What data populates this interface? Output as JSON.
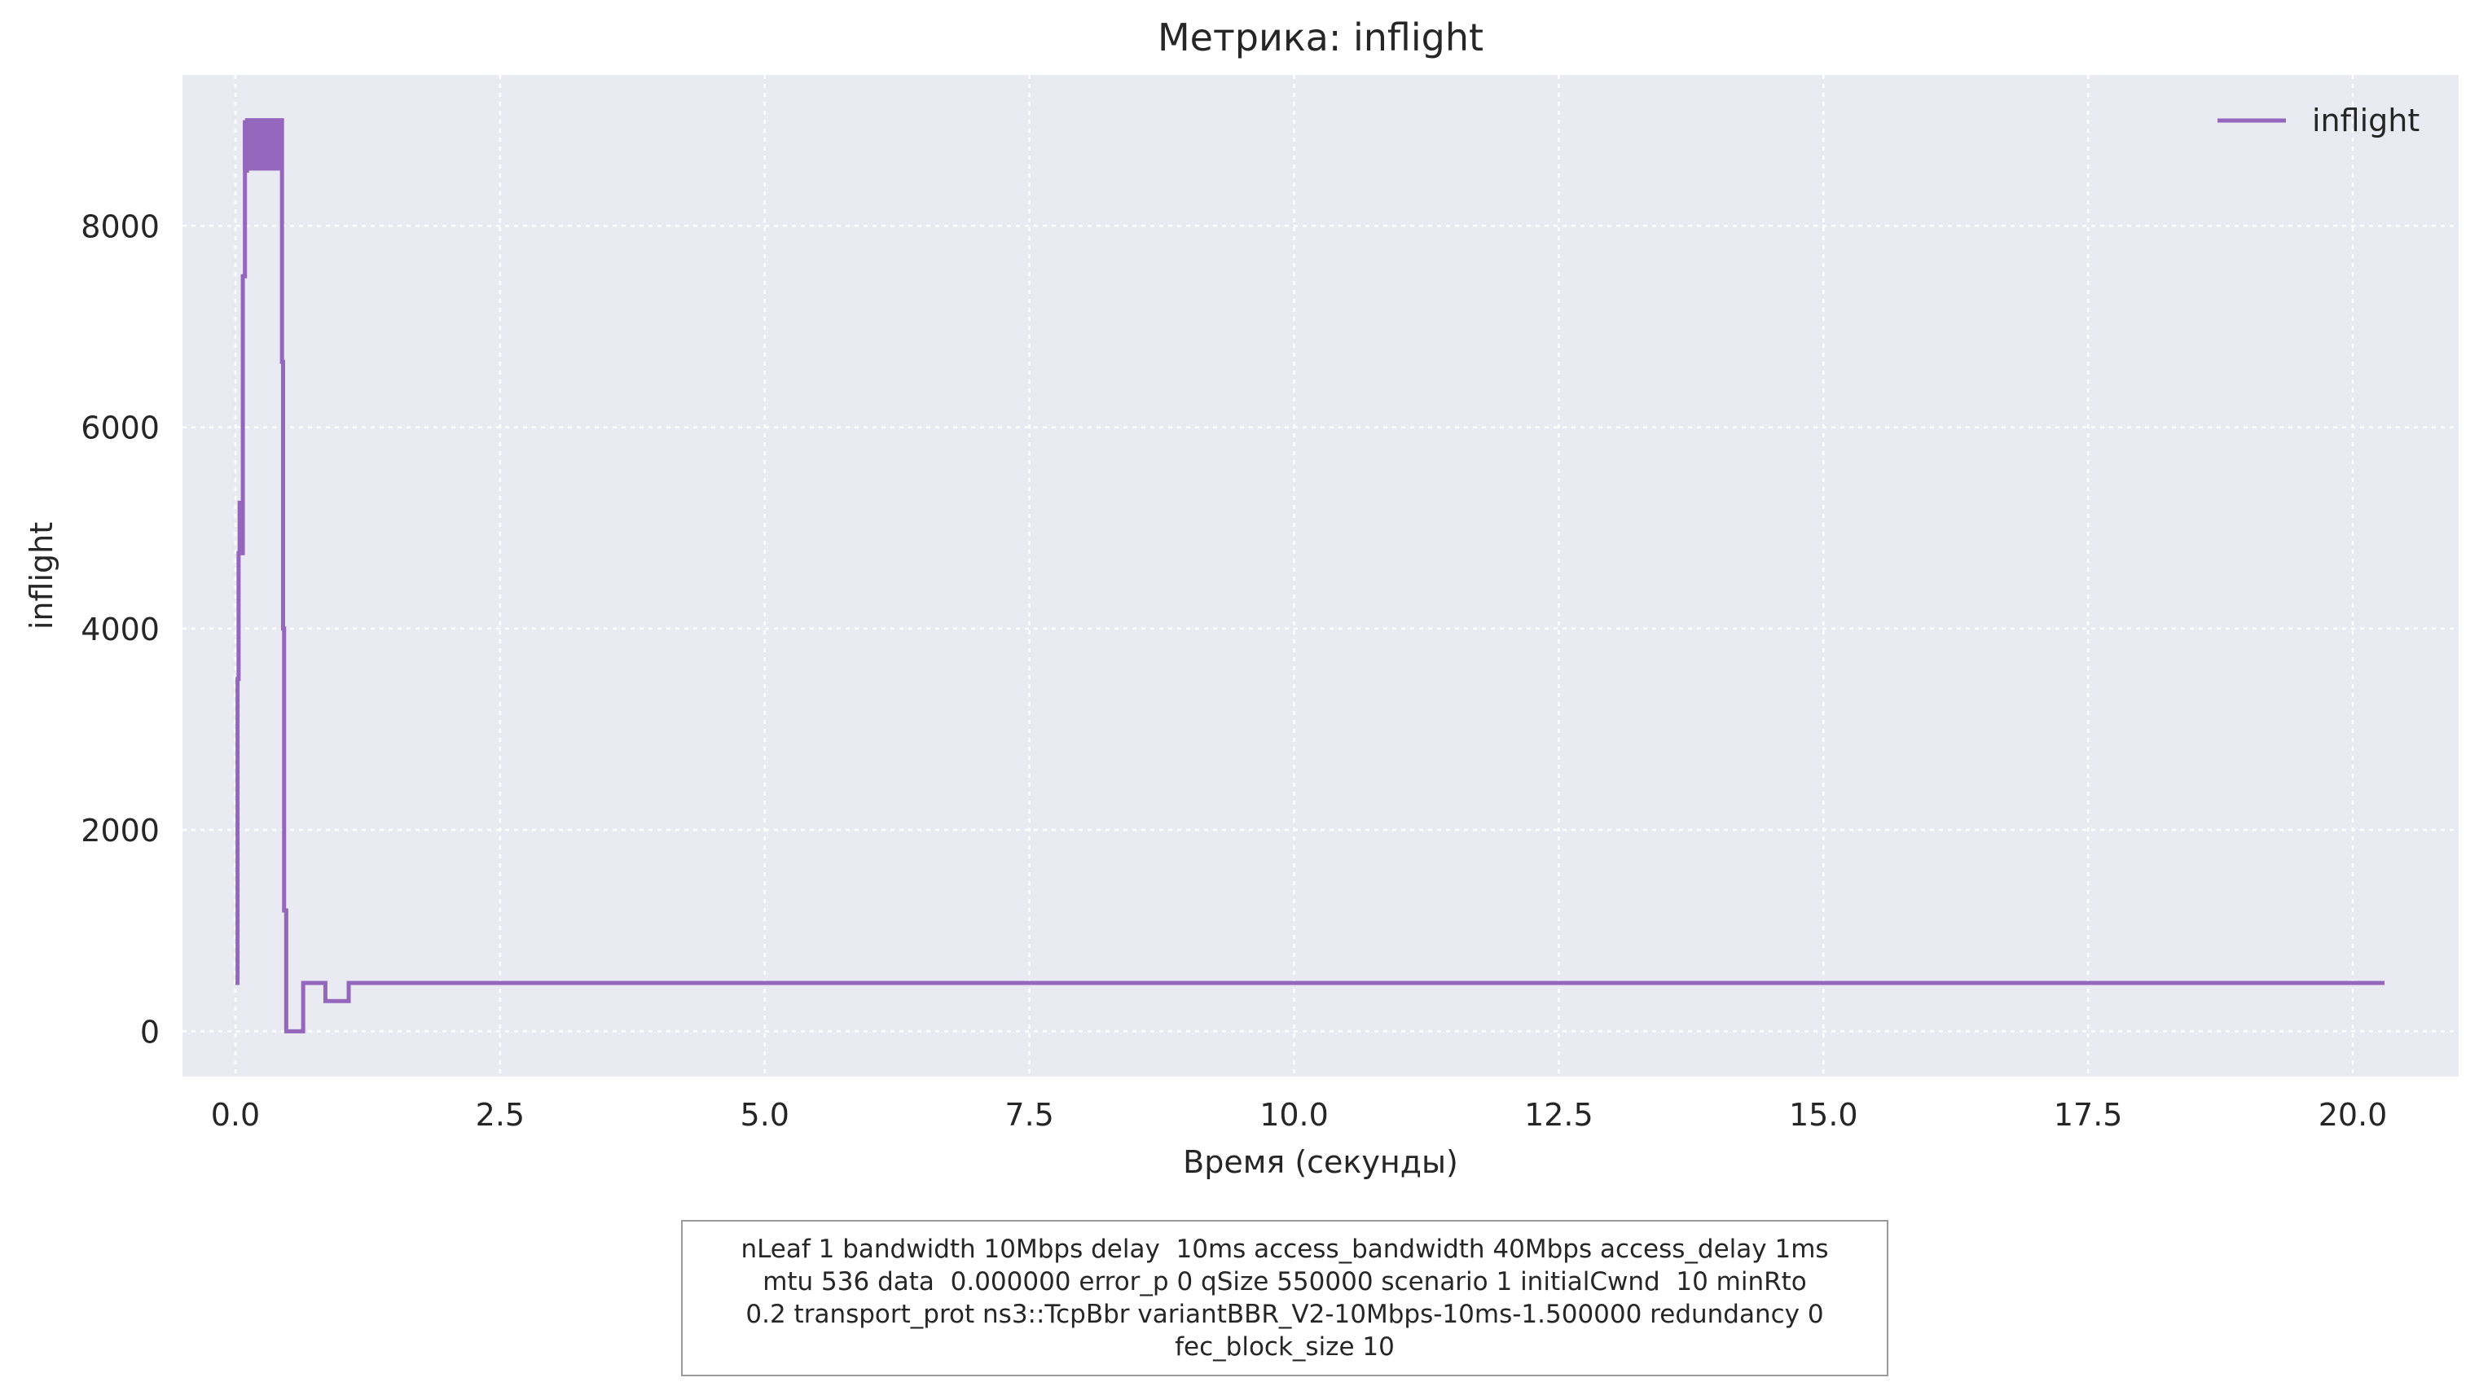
{
  "chart_data": {
    "type": "line",
    "title": "Метрика: inflight",
    "xlabel": "Время (секунды)",
    "ylabel": "inflight",
    "xlim": [
      -0.5,
      21.0
    ],
    "ylim": [
      -450,
      9500
    ],
    "x_ticks": [
      0.0,
      2.5,
      5.0,
      7.5,
      10.0,
      12.5,
      15.0,
      17.5,
      20.0
    ],
    "x_tick_labels": [
      "0.0",
      "2.5",
      "5.0",
      "7.5",
      "10.0",
      "12.5",
      "15.0",
      "17.5",
      "20.0"
    ],
    "y_ticks": [
      0,
      2000,
      4000,
      6000,
      8000
    ],
    "y_tick_labels": [
      "0",
      "2000",
      "4000",
      "6000",
      "8000"
    ],
    "grid": true,
    "legend_position": "top-right",
    "series": [
      {
        "name": "inflight",
        "color": "#9467bd",
        "x": [
          0.0,
          0.02,
          0.02,
          0.03,
          0.03,
          0.04,
          0.04,
          0.05,
          0.05,
          0.07,
          0.07,
          0.09,
          0.09,
          0.11,
          0.11,
          0.44,
          0.44,
          0.45,
          0.45,
          0.46,
          0.46,
          0.48,
          0.48,
          0.64,
          0.64,
          0.85,
          0.85,
          1.07,
          1.07,
          20.3
        ],
        "y": [
          480,
          480,
          3500,
          3500,
          4750,
          4750,
          5250,
          5250,
          4750,
          4750,
          7500,
          7500,
          8550,
          8550,
          9050,
          9050,
          6650,
          6650,
          4000,
          4000,
          1200,
          1200,
          0,
          0,
          480,
          480,
          300,
          300,
          480,
          480
        ]
      }
    ],
    "dense_band": {
      "x_start": 0.07,
      "x_end": 0.44,
      "y_low": 8550,
      "y_high": 9050
    }
  },
  "caption": {
    "lines": [
      "nLeaf 1 bandwidth 10Mbps delay  10ms access_bandwidth 40Mbps access_delay 1ms",
      "mtu 536 data  0.000000 error_p 0 qSize 550000 scenario 1 initialCwnd  10 minRto",
      "0.2 transport_prot ns3::TcpBbr variantBBR_V2-10Mbps-10ms-1.500000 redundancy 0",
      "fec_block_size 10"
    ]
  }
}
